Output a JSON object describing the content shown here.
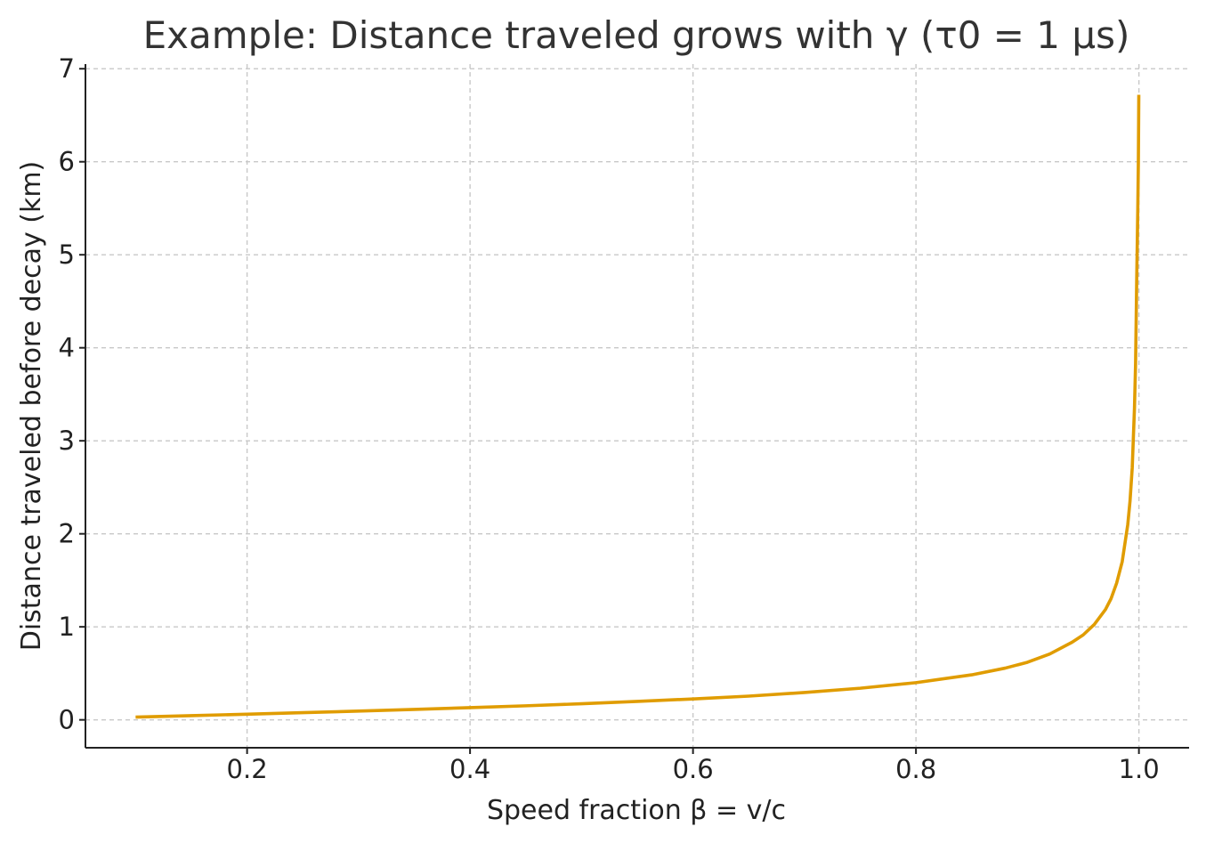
{
  "chart_data": {
    "type": "line",
    "title": "Example: Distance traveled grows with γ (τ0 = 1 μs)",
    "xlabel": "Speed fraction β = v/c",
    "ylabel": "Distance traveled before decay (km)",
    "xlim": [
      0.055,
      1.045
    ],
    "ylim": [
      -0.3,
      7.05
    ],
    "xticks": [
      0.2,
      0.4,
      0.6,
      0.8,
      1.0
    ],
    "xtick_labels": [
      "0.2",
      "0.4",
      "0.6",
      "0.8",
      "1.0"
    ],
    "yticks": [
      0,
      1,
      2,
      3,
      4,
      5,
      6,
      7
    ],
    "ytick_labels": [
      "0",
      "1",
      "2",
      "3",
      "4",
      "5",
      "6",
      "7"
    ],
    "grid": true,
    "series": [
      {
        "color": "#e09c00",
        "x": [
          0.1,
          0.15,
          0.2,
          0.25,
          0.3,
          0.35,
          0.4,
          0.45,
          0.5,
          0.55,
          0.6,
          0.65,
          0.7,
          0.75,
          0.8,
          0.85,
          0.88,
          0.9,
          0.92,
          0.94,
          0.95,
          0.96,
          0.97,
          0.975,
          0.98,
          0.985,
          0.99,
          0.992,
          0.994,
          0.996,
          0.997,
          0.998,
          0.999,
          0.9995,
          0.9999
        ],
        "y": [
          0.03,
          0.045,
          0.061,
          0.077,
          0.094,
          0.112,
          0.131,
          0.151,
          0.173,
          0.198,
          0.225,
          0.255,
          0.294,
          0.34,
          0.4,
          0.484,
          0.556,
          0.619,
          0.708,
          0.834,
          0.913,
          1.026,
          1.186,
          1.303,
          1.47,
          1.7,
          2.1,
          2.35,
          2.71,
          3.35,
          3.83,
          4.72,
          5.5,
          6.0,
          6.72
        ]
      }
    ]
  }
}
